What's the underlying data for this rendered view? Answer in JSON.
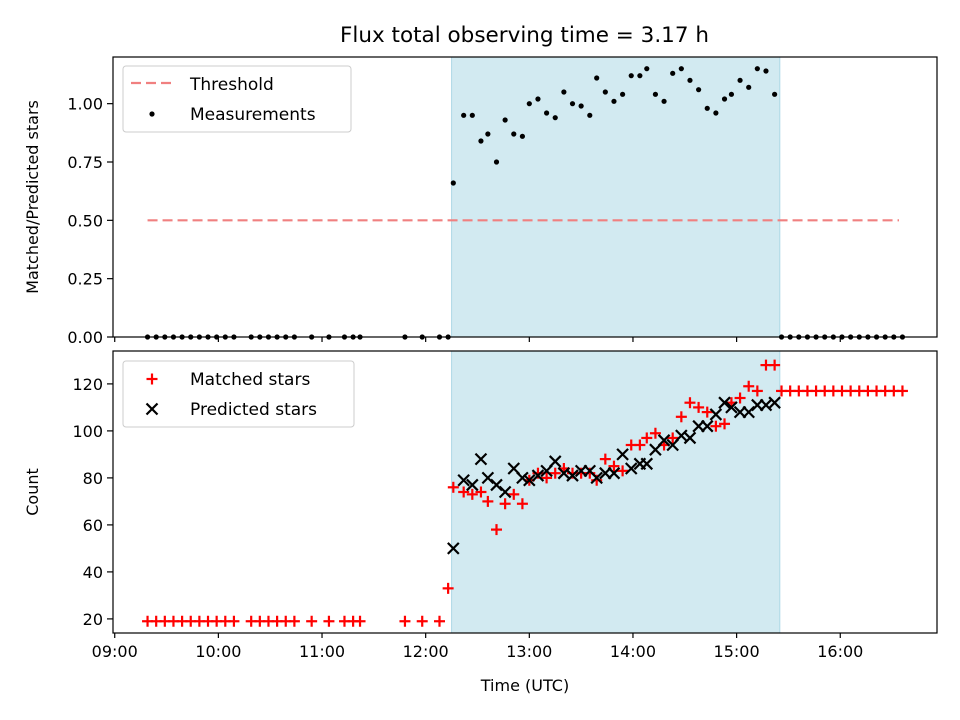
{
  "figure": {
    "title": "Flux total observing time = 3.17 h"
  },
  "colors": {
    "shade": "#add8e6",
    "threshold": "#f08080",
    "measurement": "#000000",
    "matched": "#ff0000",
    "predicted": "#000000"
  },
  "chart_data": [
    {
      "type": "scatter",
      "ylabel": "Matched/Predicted stars",
      "ylim": [
        0,
        1.2
      ],
      "yticks": [
        0,
        0.25,
        0.5,
        0.75,
        1.0
      ],
      "ytick_labels": [
        "0.00",
        "0.25",
        "0.50",
        "0.75",
        "1.00"
      ],
      "xlim": [
        "08:59",
        "16:56"
      ],
      "shaded_span": [
        "12:15",
        "15:25"
      ],
      "legend": {
        "position": "top-left",
        "entries": [
          "Threshold",
          "Measurements"
        ]
      },
      "threshold": {
        "name": "Threshold",
        "x": [
          "09:19",
          "16:34"
        ],
        "y": 0.5
      },
      "measurements": {
        "name": "Measurements",
        "x": [
          "09:19",
          "09:24",
          "09:29",
          "09:34",
          "09:39",
          "09:44",
          "09:49",
          "09:54",
          "09:59",
          "10:04",
          "10:09",
          "10:19",
          "10:24",
          "10:29",
          "10:34",
          "10:39",
          "10:44",
          "10:54",
          "11:04",
          "11:13",
          "11:18",
          "11:22",
          "11:48",
          "11:58",
          "12:08",
          "12:13",
          "12:16",
          "12:22",
          "12:27",
          "12:32",
          "12:36",
          "12:41",
          "12:46",
          "12:51",
          "12:56",
          "13:00",
          "13:05",
          "13:10",
          "13:15",
          "13:20",
          "13:25",
          "13:30",
          "13:35",
          "13:39",
          "13:44",
          "13:49",
          "13:54",
          "13:59",
          "14:04",
          "14:08",
          "14:13",
          "14:18",
          "14:23",
          "14:28",
          "14:33",
          "14:38",
          "14:43",
          "14:48",
          "14:53",
          "14:57",
          "15:02",
          "15:07",
          "15:12",
          "15:17",
          "15:22",
          "15:26",
          "15:31",
          "15:36",
          "15:41",
          "15:46",
          "15:51",
          "15:56",
          "16:01",
          "16:06",
          "16:11",
          "16:16",
          "16:21",
          "16:26",
          "16:31",
          "16:36"
        ],
        "y": [
          0,
          0,
          0,
          0,
          0,
          0,
          0,
          0,
          0,
          0,
          0,
          0,
          0,
          0,
          0,
          0,
          0,
          0,
          0,
          0,
          0,
          0,
          0,
          0,
          0,
          0,
          0.66,
          0.95,
          0.95,
          0.84,
          0.87,
          0.75,
          0.93,
          0.87,
          0.86,
          1.0,
          1.02,
          0.96,
          0.94,
          1.05,
          1.0,
          0.99,
          0.95,
          1.11,
          1.05,
          1.01,
          1.04,
          1.12,
          1.12,
          1.15,
          1.04,
          1.01,
          1.13,
          1.15,
          1.1,
          1.06,
          0.98,
          0.96,
          1.02,
          1.04,
          1.1,
          1.07,
          1.15,
          1.14,
          1.04,
          0,
          0,
          0,
          0,
          0,
          0,
          0,
          0,
          0,
          0,
          0,
          0,
          0,
          0,
          0
        ]
      }
    },
    {
      "type": "scatter",
      "xlabel": "Time (UTC)",
      "ylabel": "Count",
      "ylim": [
        14,
        134
      ],
      "yticks": [
        20,
        40,
        60,
        80,
        100,
        120
      ],
      "ytick_labels": [
        "20",
        "40",
        "60",
        "80",
        "100",
        "120"
      ],
      "xlim": [
        "08:59",
        "16:56"
      ],
      "xticks": [
        "09:00",
        "10:00",
        "11:00",
        "12:00",
        "13:00",
        "14:00",
        "15:00",
        "16:00"
      ],
      "xtick_labels": [
        "09:00",
        "10:00",
        "11:00",
        "12:00",
        "13:00",
        "14:00",
        "15:00",
        "16:00"
      ],
      "shaded_span": [
        "12:15",
        "15:25"
      ],
      "legend": {
        "position": "top-left",
        "entries": [
          "Matched stars",
          "Predicted stars"
        ]
      },
      "series": [
        {
          "name": "Matched stars",
          "marker": "plus",
          "x": [
            "09:19",
            "09:24",
            "09:29",
            "09:34",
            "09:39",
            "09:44",
            "09:49",
            "09:54",
            "09:59",
            "10:04",
            "10:09",
            "10:19",
            "10:24",
            "10:29",
            "10:34",
            "10:39",
            "10:44",
            "10:54",
            "11:04",
            "11:13",
            "11:18",
            "11:22",
            "11:48",
            "11:58",
            "12:08",
            "12:13",
            "12:16",
            "12:22",
            "12:27",
            "12:32",
            "12:36",
            "12:41",
            "12:46",
            "12:51",
            "12:56",
            "13:00",
            "13:05",
            "13:10",
            "13:15",
            "13:20",
            "13:25",
            "13:30",
            "13:35",
            "13:39",
            "13:44",
            "13:49",
            "13:54",
            "13:59",
            "14:04",
            "14:08",
            "14:13",
            "14:18",
            "14:23",
            "14:28",
            "14:33",
            "14:38",
            "14:43",
            "14:48",
            "14:53",
            "14:57",
            "15:02",
            "15:07",
            "15:12",
            "15:17",
            "15:22",
            "15:26",
            "15:31",
            "15:36",
            "15:41",
            "15:46",
            "15:51",
            "15:56",
            "16:01",
            "16:06",
            "16:11",
            "16:16",
            "16:21",
            "16:26",
            "16:31",
            "16:36"
          ],
          "y": [
            19,
            19,
            19,
            19,
            19,
            19,
            19,
            19,
            19,
            19,
            19,
            19,
            19,
            19,
            19,
            19,
            19,
            19,
            19,
            19,
            19,
            19,
            19,
            19,
            19,
            33,
            76,
            74,
            73,
            74,
            70,
            58,
            69,
            73,
            69,
            79,
            82,
            80,
            82,
            84,
            82,
            82,
            82,
            79,
            88,
            85,
            83,
            94,
            94,
            97,
            99,
            94,
            97,
            106,
            112,
            110,
            108,
            102,
            103,
            112,
            114,
            119,
            117,
            128,
            128,
            117,
            117,
            117,
            117,
            117,
            117,
            117,
            117,
            117,
            117,
            117,
            117,
            117,
            117,
            117
          ]
        },
        {
          "name": "Predicted stars",
          "marker": "x",
          "x": [
            "12:16",
            "12:22",
            "12:27",
            "12:32",
            "12:36",
            "12:41",
            "12:46",
            "12:51",
            "12:56",
            "13:00",
            "13:05",
            "13:10",
            "13:15",
            "13:20",
            "13:25",
            "13:30",
            "13:35",
            "13:39",
            "13:44",
            "13:49",
            "13:54",
            "13:59",
            "14:04",
            "14:08",
            "14:13",
            "14:18",
            "14:23",
            "14:28",
            "14:33",
            "14:38",
            "14:43",
            "14:48",
            "14:53",
            "14:57",
            "15:02",
            "15:07",
            "15:12",
            "15:17",
            "15:22"
          ],
          "y": [
            50,
            79,
            77,
            88,
            80,
            77,
            74,
            84,
            80,
            79,
            81,
            83,
            87,
            82,
            81,
            83,
            83,
            80,
            82,
            82,
            90,
            84,
            86,
            86,
            92,
            96,
            94,
            98,
            97,
            102,
            102,
            107,
            112,
            110,
            108,
            108,
            111,
            111,
            112
          ]
        }
      ]
    }
  ]
}
